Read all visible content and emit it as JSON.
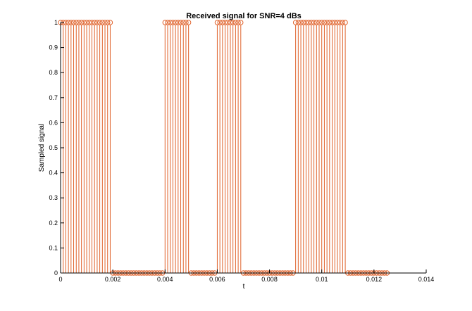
{
  "chart_data": {
    "type": "stem",
    "title": "Received signal for SNR=4 dBs",
    "xlabel": "t",
    "ylabel": "Sampled signal",
    "xlim": [
      0,
      0.014
    ],
    "ylim": [
      0,
      1
    ],
    "xticks": [
      {
        "value": 0,
        "label": "0"
      },
      {
        "value": 0.002,
        "label": "0.002"
      },
      {
        "value": 0.004,
        "label": "0.004"
      },
      {
        "value": 0.006,
        "label": "0.006"
      },
      {
        "value": 0.008,
        "label": "0.008"
      },
      {
        "value": 0.01,
        "label": "0.01"
      },
      {
        "value": 0.012,
        "label": "0.012"
      },
      {
        "value": 0.014,
        "label": "0.014"
      }
    ],
    "yticks": [
      {
        "value": 0,
        "label": "0"
      },
      {
        "value": 0.1,
        "label": "0.1"
      },
      {
        "value": 0.2,
        "label": "0.2"
      },
      {
        "value": 0.3,
        "label": "0.3"
      },
      {
        "value": 0.4,
        "label": "0.4"
      },
      {
        "value": 0.5,
        "label": "0.5"
      },
      {
        "value": 0.6,
        "label": "0.6"
      },
      {
        "value": 0.7,
        "label": "0.7"
      },
      {
        "value": 0.8,
        "label": "0.8"
      },
      {
        "value": 0.9,
        "label": "0.9"
      },
      {
        "value": 1,
        "label": "1"
      }
    ],
    "grid": false,
    "color": "#e0622b",
    "sample_interval": 0.0001,
    "x_start": 0,
    "values": [
      1,
      1,
      1,
      1,
      1,
      1,
      1,
      1,
      1,
      1,
      1,
      1,
      1,
      1,
      1,
      1,
      1,
      1,
      1,
      1,
      0,
      0,
      0,
      0,
      0,
      0,
      0,
      0,
      0,
      0,
      0,
      0,
      0,
      0,
      0,
      0,
      0,
      0,
      0,
      0,
      1,
      1,
      1,
      1,
      1,
      1,
      1,
      1,
      1,
      1,
      0,
      0,
      0,
      0,
      0,
      0,
      0,
      0,
      0,
      0,
      1,
      1,
      1,
      1,
      1,
      1,
      1,
      1,
      1,
      1,
      0,
      0,
      0,
      0,
      0,
      0,
      0,
      0,
      0,
      0,
      0,
      0,
      0,
      0,
      0,
      0,
      0,
      0,
      0,
      0,
      1,
      1,
      1,
      1,
      1,
      1,
      1,
      1,
      1,
      1,
      1,
      1,
      1,
      1,
      1,
      1,
      1,
      1,
      1,
      1,
      0,
      0,
      0,
      0,
      0,
      0,
      0,
      0,
      0,
      0,
      0,
      0,
      0,
      0,
      0,
      0
    ]
  }
}
